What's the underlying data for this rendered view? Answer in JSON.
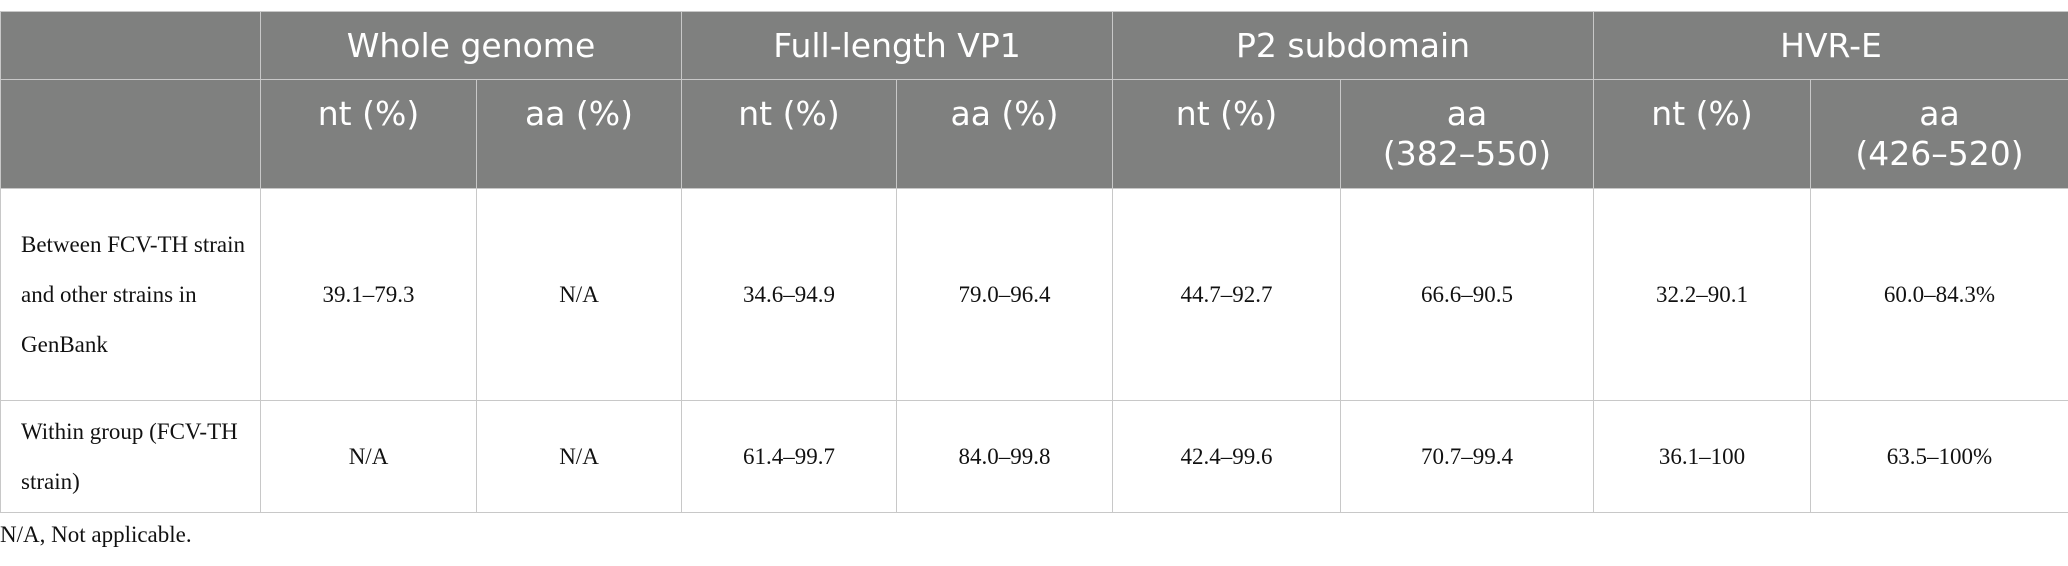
{
  "header": {
    "groups": [
      "Whole genome",
      "Full-length VP1",
      "P2 subdomain",
      "HVR-E"
    ],
    "subheaders": [
      "nt (%)",
      "aa (%)",
      "nt (%)",
      "aa (%)",
      "nt (%)",
      "aa\n(382–550)",
      "nt (%)",
      "aa\n(426–520)"
    ]
  },
  "table": {
    "rows": [
      [
        "Between FCV-TH strain and other strains in GenBank",
        "39.1–79.3",
        "N/A",
        "34.6–94.9",
        "79.0–96.4",
        "44.7–92.7",
        "66.6–90.5",
        "32.2–90.1",
        "60.0–84.3%"
      ],
      [
        "Within group (FCV-TH strain)",
        "N/A",
        "N/A",
        "61.4–99.7",
        "84.0–99.8",
        "42.4–99.6",
        "70.7–99.4",
        "36.1–100",
        "63.5–100%"
      ]
    ]
  },
  "footnote": "N/A, Not applicable."
}
